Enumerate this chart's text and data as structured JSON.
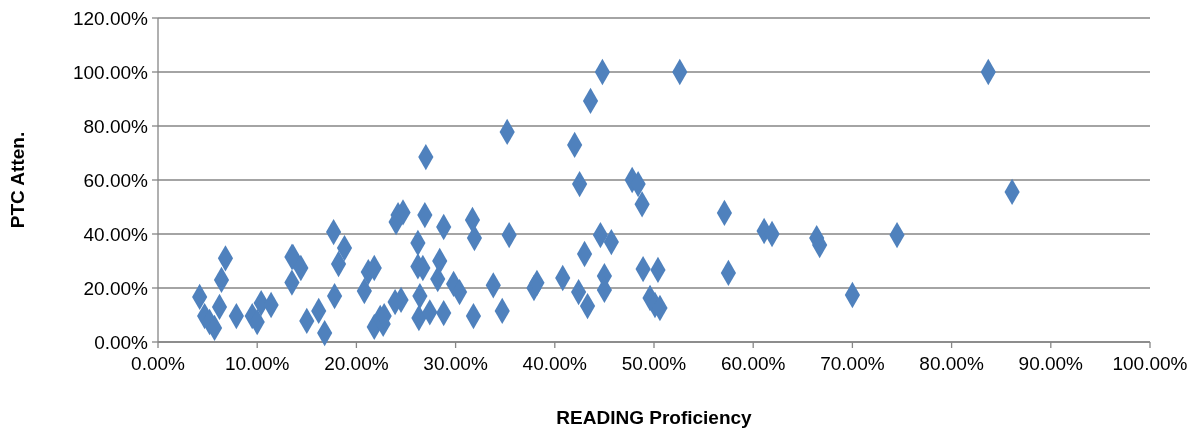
{
  "chart_data": {
    "type": "scatter",
    "xlabel": "READING Proficiency",
    "ylabel": "PTC Atten.",
    "marker": "diamond",
    "grid": "y",
    "xlim": [
      0,
      100
    ],
    "ylim": [
      0,
      120
    ],
    "xticks": [
      {
        "value": 0,
        "label": "0.00%"
      },
      {
        "value": 10,
        "label": "10.00%"
      },
      {
        "value": 20,
        "label": "20.00%"
      },
      {
        "value": 30,
        "label": "30.00%"
      },
      {
        "value": 40,
        "label": "40.00%"
      },
      {
        "value": 50,
        "label": "50.00%"
      },
      {
        "value": 60,
        "label": "60.00%"
      },
      {
        "value": 70,
        "label": "70.00%"
      },
      {
        "value": 80,
        "label": "80.00%"
      },
      {
        "value": 90,
        "label": "90.00%"
      },
      {
        "value": 100,
        "label": "100.00%"
      }
    ],
    "yticks": [
      {
        "value": 0,
        "label": "0.00%"
      },
      {
        "value": 20,
        "label": "20.00%"
      },
      {
        "value": 40,
        "label": "40.00%"
      },
      {
        "value": 60,
        "label": "60.00%"
      },
      {
        "value": 80,
        "label": "80.00%"
      },
      {
        "value": 100,
        "label": "100.00%"
      },
      {
        "value": 120,
        "label": "120.00%"
      }
    ],
    "series": [
      {
        "color": "#4f81bd",
        "x": [
          4.2,
          4.7,
          5.2,
          5.7,
          6.2,
          6.4,
          6.8,
          7.9,
          9.5,
          10,
          10.4,
          11.4,
          13.5,
          13.6,
          13.5,
          14.4,
          15,
          16.2,
          16.8,
          17.7,
          17.8,
          18.2,
          18.8,
          20.8,
          21.2,
          21.8,
          21.8,
          22.4,
          22.7,
          22.8,
          24.2,
          24.7,
          24,
          24.5,
          23.9,
          26.2,
          26.2,
          26.4,
          26.3,
          26.7,
          26.9,
          27,
          27.4,
          28.2,
          28.4,
          28.8,
          28.8,
          29.8,
          30.4,
          31.7,
          31.9,
          31.8,
          33.8,
          34.7,
          35.2,
          35.4,
          37.9,
          38.2,
          40.8,
          42,
          42.5,
          42.4,
          43,
          43.3,
          43.6,
          44.6,
          44.8,
          45,
          45,
          45.7,
          47.8,
          48.4,
          48.8,
          48.9,
          49.6,
          50.1,
          50.4,
          50.6,
          52.6,
          57.1,
          57.5,
          61.1,
          61.9,
          66.4,
          66.7,
          70,
          74.5,
          83.7,
          86.1
        ],
        "values": [
          16.7,
          9.6,
          7.4,
          5.2,
          13,
          23,
          31,
          9.6,
          9.6,
          7.4,
          14.4,
          13.7,
          22,
          31.5,
          31.5,
          27.4,
          7.8,
          11.5,
          3.3,
          40.7,
          17,
          28.9,
          34.8,
          18.9,
          25.9,
          27.4,
          5.6,
          8.9,
          6.7,
          9.6,
          47,
          48,
          44.4,
          15.6,
          14.8,
          36.7,
          28,
          17,
          8.9,
          27.4,
          47,
          68.5,
          11,
          23.3,
          30,
          42.6,
          10.7,
          21.5,
          18.5,
          45.2,
          38.5,
          9.6,
          21,
          11.5,
          77.8,
          39.6,
          20,
          21.9,
          23.7,
          73,
          58.5,
          18.5,
          32.6,
          13.3,
          89.3,
          39.6,
          100,
          24.4,
          19.3,
          37,
          60,
          58.5,
          51,
          27,
          16.3,
          13.7,
          26.7,
          12.6,
          100,
          47.8,
          25.6,
          41.1,
          40,
          38.5,
          35.9,
          17.4,
          39.6,
          100,
          55.6
        ]
      }
    ]
  }
}
